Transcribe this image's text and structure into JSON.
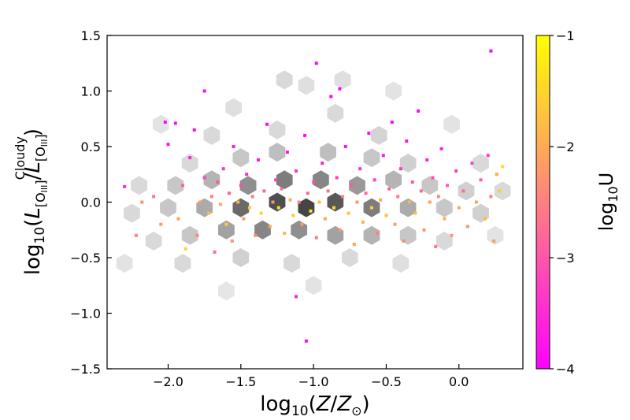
{
  "chart_data": {
    "type": "scatter",
    "title": "",
    "xlabel": {
      "prefix": "log",
      "sub": "10",
      "body": "(",
      "italic": "Z",
      "slash": "/",
      "italic2": "Z",
      "sun": "⊙",
      "close": ")"
    },
    "ylabel": {
      "prefix": "log",
      "sub": "10",
      "body": "(",
      "L1": "L",
      "L1sub": "[O",
      "L1subIII": "III",
      "L1subclose": "]",
      "slash": "/",
      "L2": "L",
      "L2sub": "[O",
      "L2subIII": "III",
      "L2subclose": "]",
      "L2sup": "Cloudy",
      "close": ")"
    },
    "colorbar_label": {
      "prefix": "log",
      "sub": "10",
      "body": "U"
    },
    "xlim": [
      -2.42,
      0.44
    ],
    "ylim": [
      -1.5,
      1.5
    ],
    "x_ticks": [
      -2.0,
      -1.5,
      -1.0,
      -0.5,
      0.0
    ],
    "x_tick_labels": [
      "−2.0",
      "−1.5",
      "−1.0",
      "−0.5",
      "0.0"
    ],
    "y_ticks": [
      -1.5,
      -1.0,
      -0.5,
      0.0,
      0.5,
      1.0,
      1.5
    ],
    "y_tick_labels": [
      "−1.5",
      "−1.0",
      "−0.5",
      "0.0",
      "0.5",
      "1.0",
      "1.5"
    ],
    "colorbar": {
      "range": [
        -4,
        -1
      ],
      "ticks": [
        -4,
        -3,
        -2,
        -1
      ],
      "tick_labels": [
        "−4",
        "−3",
        "−2",
        "−1"
      ],
      "colormap": "spring"
    },
    "background": "hexbin density of grey hexagons underlying the scatter points",
    "grid": false,
    "hexbin_cells": [
      {
        "x": -1.2,
        "y": 1.1,
        "d": 0.15
      },
      {
        "x": -1.05,
        "y": 1.05,
        "d": 0.12
      },
      {
        "x": -0.8,
        "y": 1.1,
        "d": 0.12
      },
      {
        "x": -0.45,
        "y": 1.0,
        "d": 0.1
      },
      {
        "x": -0.85,
        "y": 0.8,
        "d": 0.15
      },
      {
        "x": -1.55,
        "y": 0.85,
        "d": 0.12
      },
      {
        "x": -2.05,
        "y": 0.7,
        "d": 0.1
      },
      {
        "x": -0.05,
        "y": 0.7,
        "d": 0.1
      },
      {
        "x": -1.7,
        "y": 0.6,
        "d": 0.15
      },
      {
        "x": -1.25,
        "y": 0.65,
        "d": 0.15
      },
      {
        "x": -0.55,
        "y": 0.6,
        "d": 0.18
      },
      {
        "x": -1.85,
        "y": 0.35,
        "d": 0.15
      },
      {
        "x": -1.5,
        "y": 0.4,
        "d": 0.25
      },
      {
        "x": -1.25,
        "y": 0.45,
        "d": 0.3
      },
      {
        "x": -0.9,
        "y": 0.45,
        "d": 0.3
      },
      {
        "x": -0.6,
        "y": 0.4,
        "d": 0.25
      },
      {
        "x": -0.35,
        "y": 0.35,
        "d": 0.2
      },
      {
        "x": 0.15,
        "y": 0.35,
        "d": 0.15
      },
      {
        "x": -2.2,
        "y": 0.15,
        "d": 0.15
      },
      {
        "x": -1.95,
        "y": 0.15,
        "d": 0.25
      },
      {
        "x": -1.7,
        "y": 0.2,
        "d": 0.35
      },
      {
        "x": -1.45,
        "y": 0.15,
        "d": 0.55
      },
      {
        "x": -1.2,
        "y": 0.2,
        "d": 0.65
      },
      {
        "x": -0.95,
        "y": 0.2,
        "d": 0.6
      },
      {
        "x": -0.7,
        "y": 0.15,
        "d": 0.5
      },
      {
        "x": -0.45,
        "y": 0.2,
        "d": 0.35
      },
      {
        "x": -0.2,
        "y": 0.15,
        "d": 0.25
      },
      {
        "x": 0.05,
        "y": 0.1,
        "d": 0.2
      },
      {
        "x": 0.3,
        "y": 0.1,
        "d": 0.15
      },
      {
        "x": -2.25,
        "y": -0.1,
        "d": 0.15
      },
      {
        "x": -2.0,
        "y": -0.05,
        "d": 0.25
      },
      {
        "x": -1.75,
        "y": -0.05,
        "d": 0.4
      },
      {
        "x": -1.5,
        "y": -0.05,
        "d": 0.75
      },
      {
        "x": -1.25,
        "y": 0.0,
        "d": 0.9
      },
      {
        "x": -1.05,
        "y": -0.05,
        "d": 0.95
      },
      {
        "x": -0.85,
        "y": 0.0,
        "d": 0.85
      },
      {
        "x": -0.6,
        "y": -0.05,
        "d": 0.65
      },
      {
        "x": -0.35,
        "y": -0.05,
        "d": 0.4
      },
      {
        "x": -0.1,
        "y": -0.05,
        "d": 0.25
      },
      {
        "x": 0.15,
        "y": -0.1,
        "d": 0.2
      },
      {
        "x": -2.1,
        "y": -0.35,
        "d": 0.15
      },
      {
        "x": -1.85,
        "y": -0.3,
        "d": 0.25
      },
      {
        "x": -1.6,
        "y": -0.25,
        "d": 0.45
      },
      {
        "x": -1.35,
        "y": -0.25,
        "d": 0.6
      },
      {
        "x": -1.1,
        "y": -0.25,
        "d": 0.55
      },
      {
        "x": -0.85,
        "y": -0.3,
        "d": 0.45
      },
      {
        "x": -0.6,
        "y": -0.3,
        "d": 0.35
      },
      {
        "x": -0.35,
        "y": -0.3,
        "d": 0.25
      },
      {
        "x": -0.1,
        "y": -0.35,
        "d": 0.15
      },
      {
        "x": 0.25,
        "y": -0.3,
        "d": 0.1
      },
      {
        "x": -2.3,
        "y": -0.55,
        "d": 0.1
      },
      {
        "x": -1.9,
        "y": -0.55,
        "d": 0.15
      },
      {
        "x": -1.5,
        "y": -0.5,
        "d": 0.2
      },
      {
        "x": -1.15,
        "y": -0.55,
        "d": 0.15
      },
      {
        "x": -0.75,
        "y": -0.5,
        "d": 0.15
      },
      {
        "x": -0.4,
        "y": -0.55,
        "d": 0.12
      },
      {
        "x": -1.0,
        "y": -0.75,
        "d": 0.1
      },
      {
        "x": -1.6,
        "y": -0.8,
        "d": 0.08
      }
    ],
    "points_description": "approximately 1200 scatter points colored by log10 U",
    "points": [
      {
        "x": -2.3,
        "y": 0.14,
        "c": -3.5
      },
      {
        "x": -2.22,
        "y": -0.3,
        "c": -2.5
      },
      {
        "x": -2.18,
        "y": 0.0,
        "c": -2.3
      },
      {
        "x": -2.1,
        "y": 0.05,
        "c": -2.6
      },
      {
        "x": -2.05,
        "y": -0.2,
        "c": -2.2
      },
      {
        "x": -2.0,
        "y": 0.52,
        "c": -3.8
      },
      {
        "x": -2.02,
        "y": 0.72,
        "c": -3.9
      },
      {
        "x": -1.95,
        "y": 0.71,
        "c": -3.9
      },
      {
        "x": -1.93,
        "y": -0.15,
        "c": -2.1
      },
      {
        "x": -1.9,
        "y": 0.15,
        "c": -2.8
      },
      {
        "x": -1.88,
        "y": -0.42,
        "c": -1.5
      },
      {
        "x": -1.85,
        "y": 0.4,
        "c": -3.6
      },
      {
        "x": -1.82,
        "y": 0.65,
        "c": -3.9
      },
      {
        "x": -1.8,
        "y": -0.3,
        "c": -2.4
      },
      {
        "x": -1.78,
        "y": 0.0,
        "c": -2.2
      },
      {
        "x": -1.75,
        "y": 0.22,
        "c": -3.2
      },
      {
        "x": -1.72,
        "y": -0.1,
        "c": -1.8
      },
      {
        "x": -1.7,
        "y": 0.05,
        "c": -2.5
      },
      {
        "x": -1.68,
        "y": -0.45,
        "c": -2.7
      },
      {
        "x": -1.66,
        "y": 0.18,
        "c": -3.0
      },
      {
        "x": -1.64,
        "y": -0.02,
        "c": -2.0
      },
      {
        "x": -1.62,
        "y": 0.3,
        "c": -3.4
      },
      {
        "x": -1.6,
        "y": -0.2,
        "c": -1.6
      },
      {
        "x": -1.58,
        "y": 0.08,
        "c": -2.9
      },
      {
        "x": -1.56,
        "y": -0.35,
        "c": -2.3
      },
      {
        "x": -1.55,
        "y": 0.5,
        "c": -3.8
      },
      {
        "x": -1.52,
        "y": 0.0,
        "c": -1.9
      },
      {
        "x": -1.5,
        "y": 0.15,
        "c": -3.1
      },
      {
        "x": -1.48,
        "y": -0.15,
        "c": -2.2
      },
      {
        "x": -1.46,
        "y": 0.25,
        "c": -3.5
      },
      {
        "x": -1.44,
        "y": -0.05,
        "c": -1.7
      },
      {
        "x": -1.42,
        "y": 0.05,
        "c": -2.6
      },
      {
        "x": -1.4,
        "y": -0.3,
        "c": -2.4
      },
      {
        "x": -1.38,
        "y": 0.38,
        "c": -3.7
      },
      {
        "x": -1.36,
        "y": -0.1,
        "c": -1.5
      },
      {
        "x": -1.34,
        "y": 0.1,
        "c": -2.8
      },
      {
        "x": -1.32,
        "y": 0.7,
        "c": -3.9
      },
      {
        "x": -1.3,
        "y": -0.22,
        "c": -2.1
      },
      {
        "x": -1.28,
        "y": 0.0,
        "c": -2.3
      },
      {
        "x": -1.26,
        "y": 0.2,
        "c": -3.3
      },
      {
        "x": -1.24,
        "y": -0.05,
        "c": -1.4
      },
      {
        "x": -1.22,
        "y": 0.12,
        "c": -2.7
      },
      {
        "x": -1.2,
        "y": -0.28,
        "c": -1.9
      },
      {
        "x": -1.18,
        "y": 0.45,
        "c": -3.8
      },
      {
        "x": -1.16,
        "y": 0.02,
        "c": -2.0
      },
      {
        "x": -1.14,
        "y": -0.12,
        "c": -1.6
      },
      {
        "x": -1.12,
        "y": 0.28,
        "c": -3.4
      },
      {
        "x": -1.1,
        "y": 0.0,
        "c": -2.5
      },
      {
        "x": -1.08,
        "y": -0.2,
        "c": -2.2
      },
      {
        "x": -1.06,
        "y": 0.6,
        "c": -3.9
      },
      {
        "x": -1.04,
        "y": 0.08,
        "c": -2.9
      },
      {
        "x": -1.02,
        "y": -0.08,
        "c": -1.3
      },
      {
        "x": -1.0,
        "y": 0.18,
        "c": -3.1
      },
      {
        "x": -0.98,
        "y": -0.32,
        "c": -2.6
      },
      {
        "x": -0.96,
        "y": 0.0,
        "c": -1.8
      },
      {
        "x": -0.94,
        "y": 0.35,
        "c": -3.6
      },
      {
        "x": -0.92,
        "y": -0.15,
        "c": -2.0
      },
      {
        "x": -0.9,
        "y": 0.1,
        "c": -2.7
      },
      {
        "x": -0.88,
        "y": 0.95,
        "c": -3.95
      },
      {
        "x": -0.86,
        "y": -0.05,
        "c": -1.5
      },
      {
        "x": -0.84,
        "y": 0.22,
        "c": -3.3
      },
      {
        "x": -0.82,
        "y": -0.25,
        "c": -2.3
      },
      {
        "x": -0.8,
        "y": 0.05,
        "c": -2.4
      },
      {
        "x": -0.78,
        "y": 0.5,
        "c": -3.8
      },
      {
        "x": -0.76,
        "y": -0.1,
        "c": -1.7
      },
      {
        "x": -0.74,
        "y": 0.15,
        "c": -3.0
      },
      {
        "x": -0.72,
        "y": -0.38,
        "c": -2.1
      },
      {
        "x": -0.7,
        "y": 0.0,
        "c": -2.2
      },
      {
        "x": -0.68,
        "y": 0.3,
        "c": -3.5
      },
      {
        "x": -0.66,
        "y": -0.18,
        "c": -1.9
      },
      {
        "x": -0.64,
        "y": 0.08,
        "c": -2.8
      },
      {
        "x": -0.62,
        "y": 0.62,
        "c": -3.9
      },
      {
        "x": -0.6,
        "y": -0.05,
        "c": -1.6
      },
      {
        "x": -0.58,
        "y": 0.2,
        "c": -3.2
      },
      {
        "x": -0.56,
        "y": -0.28,
        "c": -2.5
      },
      {
        "x": -0.54,
        "y": 0.02,
        "c": -2.0
      },
      {
        "x": -0.52,
        "y": 0.42,
        "c": -3.7
      },
      {
        "x": -0.5,
        "y": -0.12,
        "c": -1.8
      },
      {
        "x": -0.48,
        "y": 0.12,
        "c": -2.9
      },
      {
        "x": -0.46,
        "y": 0.72,
        "c": -3.9
      },
      {
        "x": -0.44,
        "y": -0.2,
        "c": -2.2
      },
      {
        "x": -0.42,
        "y": 0.05,
        "c": -2.6
      },
      {
        "x": -0.4,
        "y": 0.3,
        "c": -3.4
      },
      {
        "x": -0.38,
        "y": -0.35,
        "c": -2.4
      },
      {
        "x": -0.36,
        "y": 0.55,
        "c": -3.8
      },
      {
        "x": -0.34,
        "y": 0.0,
        "c": -1.9
      },
      {
        "x": -0.32,
        "y": 0.18,
        "c": -3.0
      },
      {
        "x": -0.3,
        "y": -0.1,
        "c": -1.7
      },
      {
        "x": -0.28,
        "y": 0.82,
        "c": -3.95
      },
      {
        "x": -0.26,
        "y": 0.1,
        "c": -2.8
      },
      {
        "x": -0.24,
        "y": -0.25,
        "c": -2.3
      },
      {
        "x": -0.22,
        "y": 0.38,
        "c": -3.6
      },
      {
        "x": -0.2,
        "y": 0.0,
        "c": -2.1
      },
      {
        "x": -0.18,
        "y": 0.22,
        "c": -3.1
      },
      {
        "x": -0.16,
        "y": -0.4,
        "c": -2.6
      },
      {
        "x": -0.14,
        "y": 0.05,
        "c": -2.4
      },
      {
        "x": -0.12,
        "y": 0.48,
        "c": -3.7
      },
      {
        "x": -0.1,
        "y": -0.15,
        "c": -1.9
      },
      {
        "x": -0.08,
        "y": 0.15,
        "c": -2.9
      },
      {
        "x": -0.05,
        "y": -0.3,
        "c": -2.2
      },
      {
        "x": -0.02,
        "y": 0.28,
        "c": -3.3
      },
      {
        "x": 0.0,
        "y": -0.05,
        "c": -2.0
      },
      {
        "x": 0.03,
        "y": 0.1,
        "c": -2.7
      },
      {
        "x": 0.06,
        "y": -0.22,
        "c": -2.3
      },
      {
        "x": 0.09,
        "y": 0.35,
        "c": -3.2
      },
      {
        "x": 0.12,
        "y": 0.0,
        "c": -2.1
      },
      {
        "x": 0.15,
        "y": 0.2,
        "c": -2.9
      },
      {
        "x": 0.18,
        "y": -0.15,
        "c": -1.8
      },
      {
        "x": 0.2,
        "y": 0.42,
        "c": -3.4
      },
      {
        "x": 0.22,
        "y": 0.05,
        "c": -2.5
      },
      {
        "x": 0.24,
        "y": -0.35,
        "c": -2.2
      },
      {
        "x": 0.26,
        "y": 0.25,
        "c": -2.0
      },
      {
        "x": 0.28,
        "y": 0.1,
        "c": -1.6
      },
      {
        "x": 0.3,
        "y": 0.32,
        "c": -1.4
      },
      {
        "x": 0.22,
        "y": 1.36,
        "c": -3.95
      },
      {
        "x": -0.98,
        "y": 1.25,
        "c": -3.95
      },
      {
        "x": -1.12,
        "y": -0.85,
        "c": -3.6
      },
      {
        "x": -1.05,
        "y": -1.25,
        "c": -3.8
      },
      {
        "x": -1.75,
        "y": 1.0,
        "c": -3.95
      },
      {
        "x": -0.82,
        "y": 1.02,
        "c": -3.9
      }
    ]
  }
}
